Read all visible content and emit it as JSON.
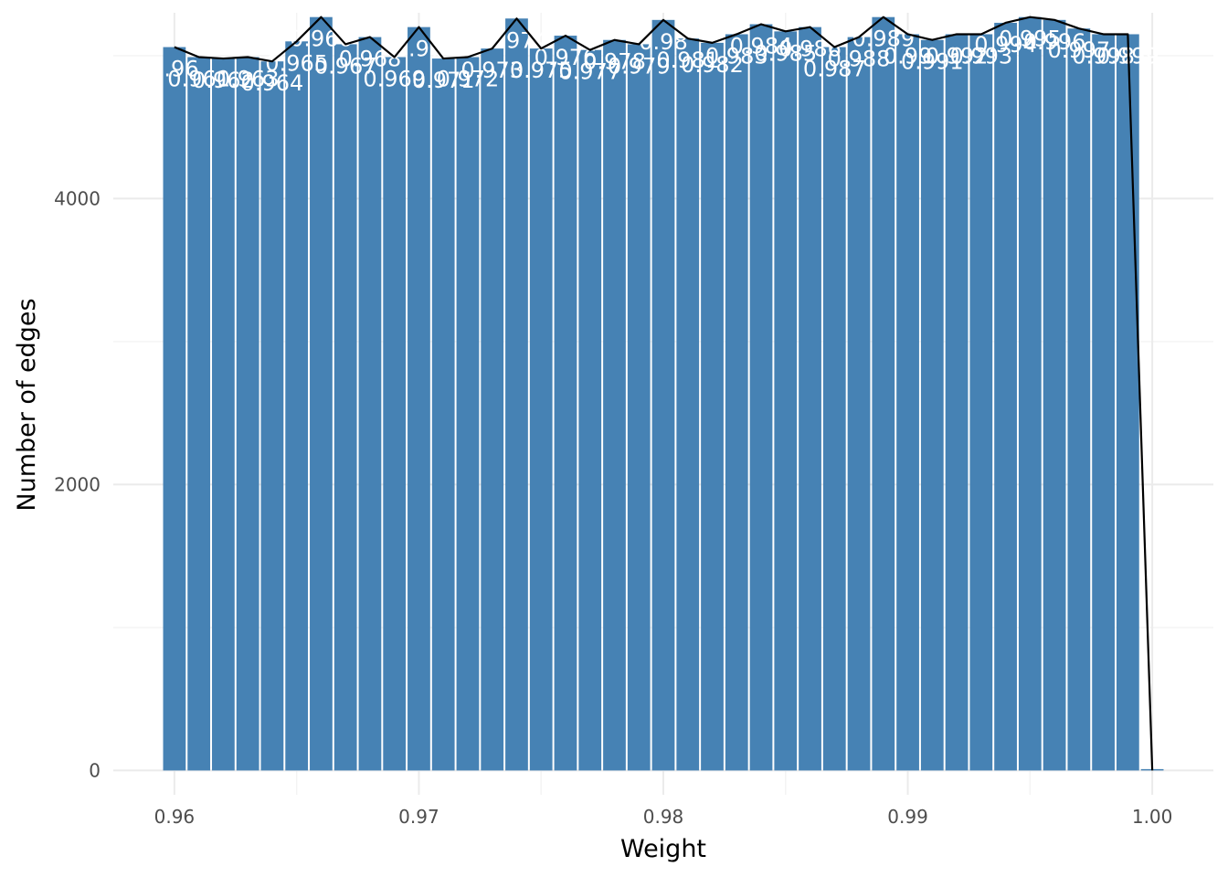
{
  "chart_data": {
    "type": "bar",
    "xlabel": "Weight",
    "ylabel": "Number of edges",
    "xlim": [
      0.9575,
      1.0025
    ],
    "ylim": [
      -170,
      5300
    ],
    "x_ticks": [
      0.96,
      0.97,
      0.98,
      0.99,
      1.0
    ],
    "x_tick_labels": [
      "0.96",
      "0.97",
      "0.98",
      "0.99",
      "1.00"
    ],
    "y_ticks": [
      0,
      2000,
      4000
    ],
    "y_tick_labels": [
      "0",
      "2000",
      "4000"
    ],
    "grid": true,
    "colors": {
      "bar": "#4682b4",
      "line": "#000000",
      "label": "#ffffff",
      "grid": "#ebebeb"
    },
    "bin_width": 0.001,
    "x": [
      0.96,
      0.961,
      0.962,
      0.963,
      0.964,
      0.965,
      0.966,
      0.967,
      0.968,
      0.969,
      0.97,
      0.971,
      0.972,
      0.973,
      0.974,
      0.975,
      0.976,
      0.977,
      0.978,
      0.979,
      0.98,
      0.981,
      0.982,
      0.983,
      0.984,
      0.985,
      0.986,
      0.987,
      0.988,
      0.989,
      0.99,
      0.991,
      0.992,
      0.993,
      0.994,
      0.995,
      0.996,
      0.997,
      0.998,
      0.999,
      1.0
    ],
    "values": [
      5060,
      4990,
      4980,
      4990,
      4960,
      5100,
      5270,
      5080,
      5130,
      4990,
      5200,
      4980,
      4990,
      5050,
      5260,
      5050,
      5140,
      5040,
      5110,
      5080,
      5250,
      5120,
      5090,
      5150,
      5220,
      5170,
      5200,
      5060,
      5130,
      5270,
      5150,
      5110,
      5150,
      5150,
      5230,
      5270,
      5250,
      5190,
      5150,
      5150,
      0
    ],
    "bar_labels": [
      "0.96",
      "0.961",
      "0.962",
      "0.963",
      "0.964",
      "0.965",
      "0.966",
      "0.967",
      "0.968",
      "0.969",
      "0.97",
      "0.971",
      "0.972",
      "0.973",
      "0.974",
      "0.975",
      "0.976",
      "0.977",
      "0.978",
      "0.979",
      "0.98",
      "0.981",
      "0.982",
      "0.983",
      "0.984",
      "0.985",
      "0.986",
      "0.987",
      "0.988",
      "0.989",
      "0.99",
      "0.991",
      "0.992",
      "0.993",
      "0.994",
      "0.995",
      "0.996",
      "0.997",
      "0.998",
      "0.999",
      ""
    ]
  }
}
